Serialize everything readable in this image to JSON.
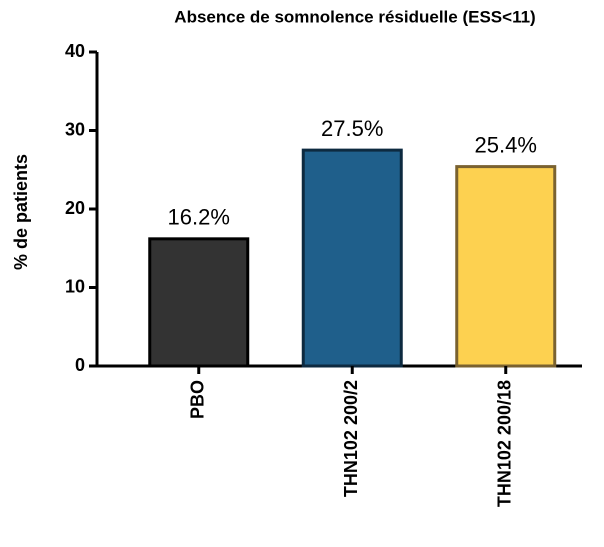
{
  "chart_data": {
    "type": "bar",
    "title": "Absence de somnolence résiduelle (ESS<11)",
    "ylabel": "% de patients",
    "categories": [
      "PBO",
      "THN102 200/2",
      "THN102 200/18"
    ],
    "values": [
      16.2,
      27.5,
      25.4
    ],
    "value_labels": [
      "16.2%",
      "27.5%",
      "25.4%"
    ],
    "colors": [
      "#333333",
      "#1f5f8b",
      "#fdd150"
    ],
    "edgecolors": [
      "#000000",
      "#0d2a40",
      "#7a6230"
    ],
    "ylim": [
      0,
      40
    ],
    "yticks": [
      0,
      10,
      20,
      30,
      40
    ],
    "grid": false
  }
}
